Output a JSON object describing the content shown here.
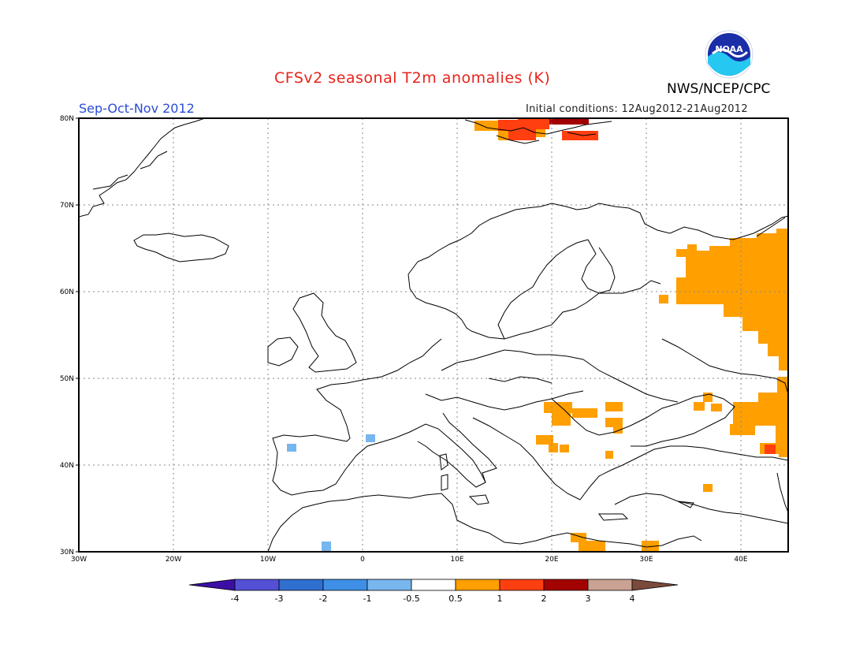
{
  "header": {
    "title": "CFSv2 seasonal T2m anomalies (K)",
    "agency": "NWS/NCEP/CPC",
    "season": "Sep-Oct-Nov 2012",
    "initial_conditions": "Initial conditions: 12Aug2012-21Aug2012",
    "logo_text": "NOAA"
  },
  "map": {
    "lon_range": [
      -30,
      45
    ],
    "lat_range": [
      30,
      80
    ],
    "lon_ticks": [
      "30W",
      "20W",
      "10W",
      "0",
      "10E",
      "20E",
      "30E",
      "40E"
    ],
    "lat_ticks": [
      "30N",
      "40N",
      "50N",
      "60N",
      "70N",
      "80N"
    ],
    "gridlines": "dotted"
  },
  "colorbar": {
    "levels": [
      "-4",
      "-3",
      "-2",
      "-1",
      "-0.5",
      "0.5",
      "1",
      "2",
      "3",
      "4"
    ],
    "colors": [
      "#3b0fa6",
      "#5350d6",
      "#2f6fd0",
      "#3f8fe6",
      "#78b6ee",
      "#ffffff",
      "#ff9f00",
      "#ff3f10",
      "#a30202",
      "#c9a293",
      "#7a4a3a"
    ]
  },
  "anomaly_regions": [
    {
      "name": "svalbard",
      "category": "1-2 / 2-3 K",
      "color": "#ff3f10"
    },
    {
      "name": "western-russia",
      "category": "0.5-1 K",
      "color": "#ff9f00"
    },
    {
      "name": "balkans-hungary",
      "category": "0.5-1 K",
      "color": "#ff9f00"
    },
    {
      "name": "caspian-caucasus",
      "category": "0.5-1 / 1-2 K",
      "color": "#ff9f00"
    },
    {
      "name": "libya-egypt-coast",
      "category": "0.5-1 K",
      "color": "#ff9f00"
    },
    {
      "name": "iberia-france-morocco",
      "category": "-0.5 to -1 K",
      "color": "#78b6ee"
    }
  ]
}
